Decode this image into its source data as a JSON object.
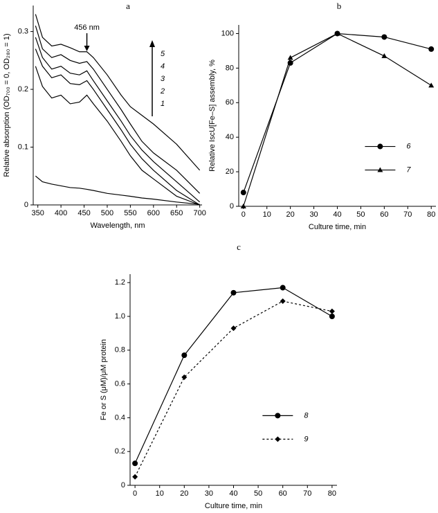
{
  "chart_data": [
    {
      "type": "line",
      "title": "a",
      "xlabel": "Wavelength, nm",
      "ylabel": "Relative absorption (OD₇₀₀ = 0, OD₂₈₀ = 1)",
      "x": [
        345,
        360,
        380,
        400,
        420,
        440,
        456,
        470,
        500,
        530,
        550,
        575,
        600,
        650,
        700
      ],
      "series": [
        {
          "name": "1",
          "color": "#000000",
          "values": [
            0.24,
            0.205,
            0.185,
            0.19,
            0.175,
            0.178,
            0.19,
            0.175,
            0.145,
            0.11,
            0.085,
            0.06,
            0.045,
            0.015,
            0
          ]
        },
        {
          "name": "2",
          "color": "#000000",
          "values": [
            0.27,
            0.24,
            0.22,
            0.225,
            0.21,
            0.208,
            0.215,
            0.2,
            0.165,
            0.13,
            0.105,
            0.08,
            0.06,
            0.025,
            0
          ]
        },
        {
          "name": "3",
          "color": "#000000",
          "values": [
            0.29,
            0.255,
            0.235,
            0.24,
            0.228,
            0.225,
            0.232,
            0.215,
            0.18,
            0.145,
            0.12,
            0.095,
            0.075,
            0.04,
            0.005
          ]
        },
        {
          "name": "4",
          "color": "#000000",
          "values": [
            0.31,
            0.27,
            0.255,
            0.26,
            0.25,
            0.245,
            0.248,
            0.235,
            0.2,
            0.165,
            0.14,
            0.11,
            0.09,
            0.06,
            0.02
          ]
        },
        {
          "name": "5",
          "color": "#000000",
          "values": [
            0.33,
            0.29,
            0.275,
            0.278,
            0.272,
            0.265,
            0.265,
            0.255,
            0.225,
            0.19,
            0.17,
            0.155,
            0.14,
            0.105,
            0.06
          ]
        },
        {
          "color": "#000000",
          "values": [
            0.05,
            0.04,
            0.036,
            0.033,
            0.03,
            0.029,
            0.027,
            0.025,
            0.02,
            0.017,
            0.015,
            0.012,
            0.01,
            0.005,
            0.001
          ]
        }
      ],
      "annotations": [
        {
          "text": "456 nm",
          "x": 456
        }
      ],
      "legend": "upper right",
      "xlim": [
        340,
        705
      ],
      "xticks": [
        350,
        400,
        450,
        500,
        550,
        600,
        650,
        700
      ],
      "ylim": [
        0,
        0.345
      ],
      "yticks": [
        0,
        0.1,
        0.2,
        0.3
      ]
    },
    {
      "type": "line",
      "title": "b",
      "xlabel": "Culture time, min",
      "ylabel": "Relative IscU[Fe–S] assembly, %",
      "x": [
        0,
        20,
        40,
        60,
        80
      ],
      "series": [
        {
          "name": "6",
          "color": "#000000",
          "marker": "circle",
          "values": [
            8,
            83,
            100,
            98,
            91
          ]
        },
        {
          "name": "7",
          "color": "#000000",
          "marker": "triangle",
          "values": [
            0,
            86,
            100,
            87,
            70
          ]
        }
      ],
      "legend": "center right",
      "xlim": [
        -2,
        82
      ],
      "xticks": [
        0,
        10,
        20,
        30,
        40,
        50,
        60,
        70,
        80
      ],
      "ylim": [
        0,
        105
      ],
      "yticks": [
        0,
        20,
        40,
        60,
        80,
        100
      ]
    },
    {
      "type": "line",
      "title": "c",
      "xlabel": "Culture time, min",
      "ylabel": "Fe or S (μM)/μM protein",
      "x": [
        0,
        20,
        40,
        60,
        80
      ],
      "series": [
        {
          "name": "8",
          "color": "#000000",
          "marker": "circle",
          "values": [
            0.13,
            0.77,
            1.14,
            1.17,
            1.0
          ]
        },
        {
          "name": "9",
          "color": "#000000",
          "marker": "diamond",
          "dashed": true,
          "values": [
            0.05,
            0.64,
            0.93,
            1.09,
            1.03
          ]
        }
      ],
      "legend": "center right",
      "xlim": [
        -2,
        82
      ],
      "xticks": [
        0,
        10,
        20,
        30,
        40,
        50,
        60,
        70,
        80
      ],
      "ylim": [
        0,
        1.25
      ],
      "yticks": [
        0,
        0.2,
        0.4,
        0.6,
        0.8,
        {
          "value": 1,
          "label": "1.0"
        },
        1.2
      ]
    }
  ]
}
